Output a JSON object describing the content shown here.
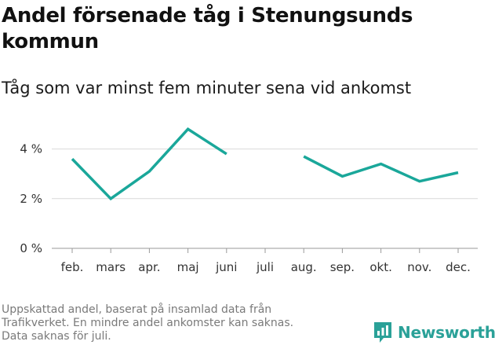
{
  "chart_data": {
    "type": "line",
    "title": "Andel försenade tåg i Stenungsunds kommun",
    "subtitle": "Tåg som var minst fem minuter sena vid ankomst",
    "categories": [
      "feb.",
      "mars",
      "apr.",
      "maj",
      "juni",
      "juli",
      "aug.",
      "sep.",
      "okt.",
      "nov.",
      "dec."
    ],
    "series": [
      {
        "values": [
          3.6,
          2.0,
          3.1,
          4.8,
          3.8,
          null,
          3.7,
          2.9,
          3.4,
          2.7,
          3.05
        ]
      }
    ],
    "yticks": [
      0,
      2,
      4
    ],
    "ytick_labels": [
      "0 %",
      "2 %",
      "4 %"
    ],
    "ylim": [
      0,
      5
    ],
    "grid": true,
    "line_color": "#1aa79a"
  },
  "footnote": [
    "Uppskattad andel, baserat på insamlad data från",
    "Trafikverket. En mindre andel ankomster kan saknas.",
    "Data saknas för juli."
  ],
  "brand": {
    "name": "Newsworthy",
    "color": "#2aa198",
    "icon": "newsworthy-logo-icon"
  }
}
